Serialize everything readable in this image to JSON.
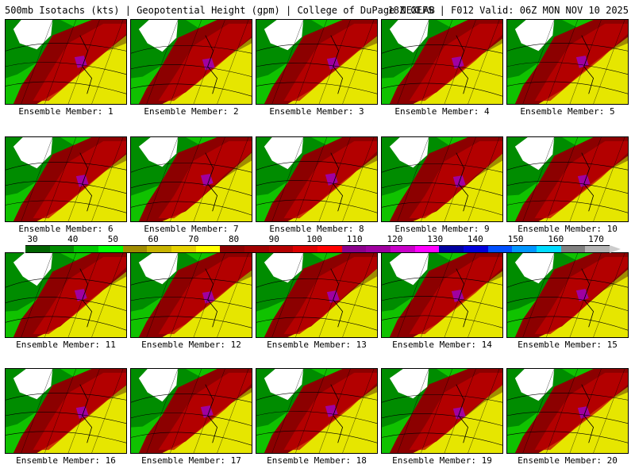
{
  "header": {
    "left": "500mb Isotachs (kts) | Geopotential Height (gpm) | College of DuPage NEXLAB",
    "right": "18Z GEFS | F012 Valid: 06Z MON NOV 10 2025"
  },
  "members": [
    {
      "label": "Ensemble Member: 1"
    },
    {
      "label": "Ensemble Member: 2"
    },
    {
      "label": "Ensemble Member: 3"
    },
    {
      "label": "Ensemble Member: 4"
    },
    {
      "label": "Ensemble Member: 5"
    },
    {
      "label": "Ensemble Member: 6"
    },
    {
      "label": "Ensemble Member: 7"
    },
    {
      "label": "Ensemble Member: 8"
    },
    {
      "label": "Ensemble Member: 9"
    },
    {
      "label": "Ensemble Member: 10"
    },
    {
      "label": "Ensemble Member: 11"
    },
    {
      "label": "Ensemble Member: 12"
    },
    {
      "label": "Ensemble Member: 13"
    },
    {
      "label": "Ensemble Member: 14"
    },
    {
      "label": "Ensemble Member: 15"
    },
    {
      "label": "Ensemble Member: 16"
    },
    {
      "label": "Ensemble Member: 17"
    },
    {
      "label": "Ensemble Member: 18"
    },
    {
      "label": "Ensemble Member: 19"
    },
    {
      "label": "Ensemble Member: 20"
    }
  ],
  "colorbar": {
    "labels": [
      "30",
      "40",
      "50",
      "60",
      "70",
      "80",
      "90",
      "100",
      "110",
      "120",
      "130",
      "140",
      "150",
      "160",
      "170"
    ],
    "colors": [
      "#006400",
      "#008c00",
      "#00c800",
      "#00ff00",
      "#a08c00",
      "#c8b400",
      "#e6d200",
      "#ffff00",
      "#8c0000",
      "#a00000",
      "#b40000",
      "#dc0000",
      "#ff0000",
      "#8c008c",
      "#a000a0",
      "#c800c8",
      "#ff00ff",
      "#0000a0",
      "#0000dc",
      "#0050ff",
      "#0096ff",
      "#00dcff",
      "#808080",
      "#b4b4b4"
    ]
  },
  "map_colors": {
    "white": "#ffffff",
    "dark_green": "#008c00",
    "green": "#00c800",
    "olive": "#a08c00",
    "yellow": "#e6e600",
    "dark_red": "#8c0000",
    "red": "#c00000",
    "purple": "#a000a0"
  }
}
